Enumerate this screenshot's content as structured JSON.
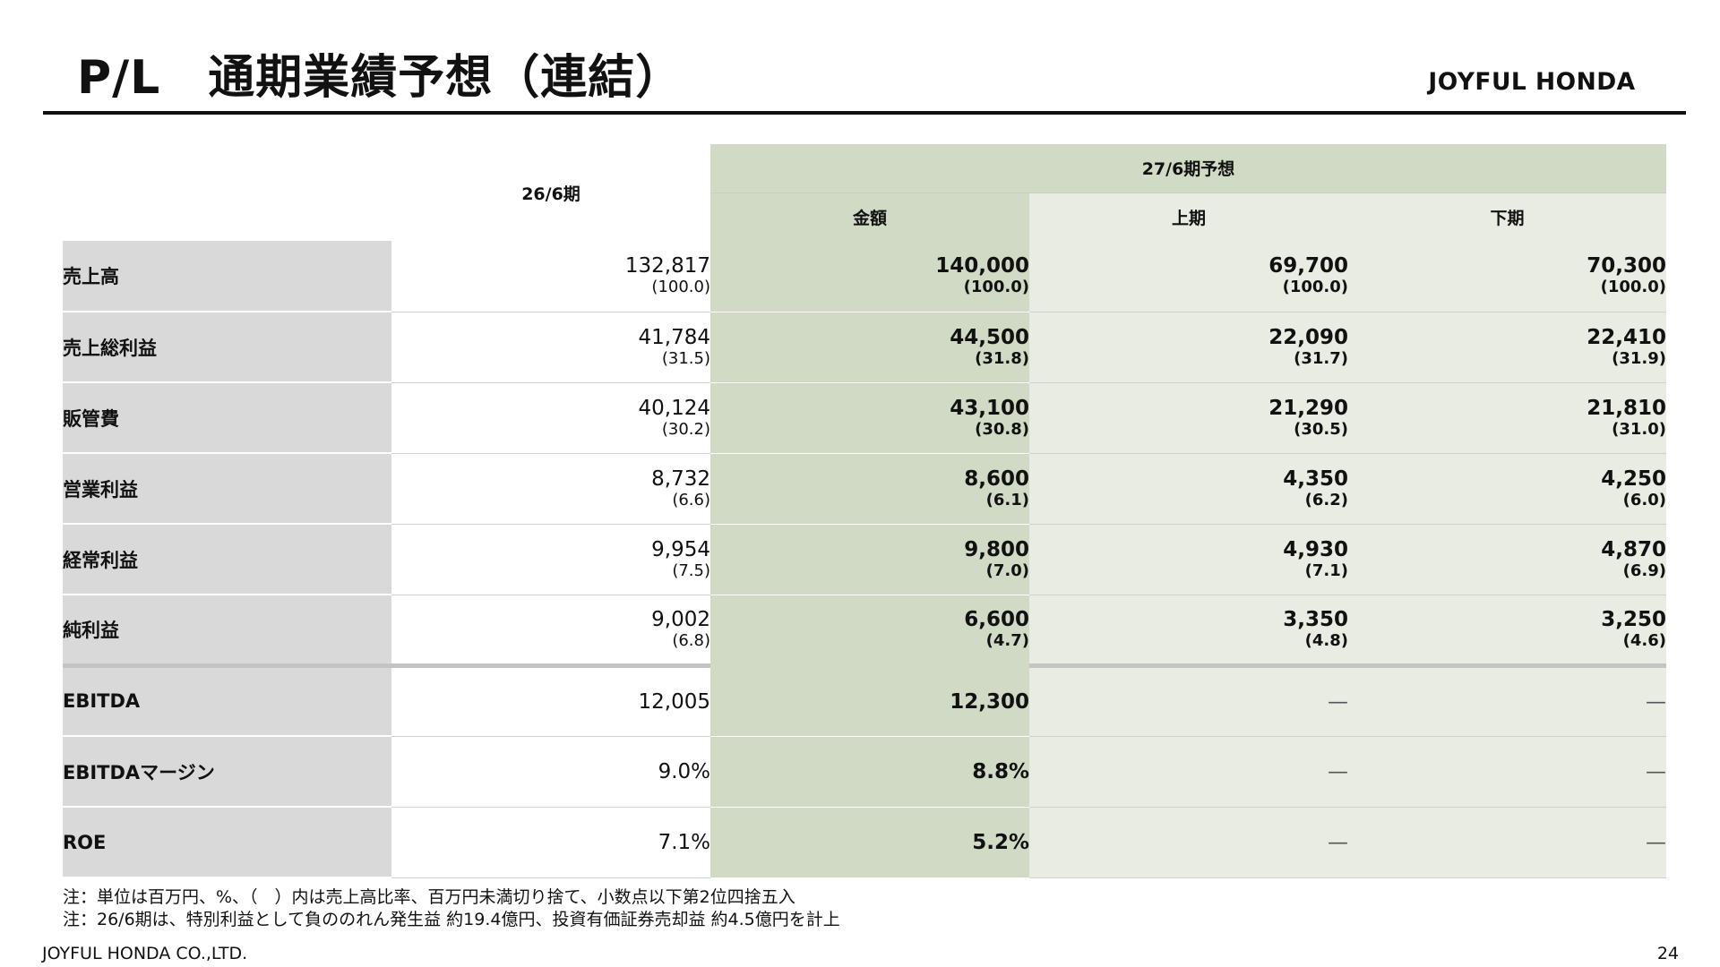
{
  "header": {
    "title": "P/L　通期業績予想（連結）",
    "brand": "JOYFUL HONDA"
  },
  "table": {
    "col_prev": "26/6期",
    "col_forecast": "27/6期予想",
    "col_amount": "金額",
    "col_h1": "上期",
    "col_h2": "下期",
    "rows": [
      {
        "label": "売上高",
        "prev": "132,817",
        "prev_ratio": "(100.0)",
        "fc": "140,000",
        "fc_ratio": "(100.0)",
        "h1": "69,700",
        "h1_ratio": "(100.0)",
        "h2": "70,300",
        "h2_ratio": "(100.0)"
      },
      {
        "label": "売上総利益",
        "prev": "41,784",
        "prev_ratio": "(31.5)",
        "fc": "44,500",
        "fc_ratio": "(31.8)",
        "h1": "22,090",
        "h1_ratio": "(31.7)",
        "h2": "22,410",
        "h2_ratio": "(31.9)"
      },
      {
        "label": "販管費",
        "prev": "40,124",
        "prev_ratio": "(30.2)",
        "fc": "43,100",
        "fc_ratio": "(30.8)",
        "h1": "21,290",
        "h1_ratio": "(30.5)",
        "h2": "21,810",
        "h2_ratio": "(31.0)"
      },
      {
        "label": "営業利益",
        "prev": "8,732",
        "prev_ratio": "(6.6)",
        "fc": "8,600",
        "fc_ratio": "(6.1)",
        "h1": "4,350",
        "h1_ratio": "(6.2)",
        "h2": "4,250",
        "h2_ratio": "(6.0)"
      },
      {
        "label": "経常利益",
        "prev": "9,954",
        "prev_ratio": "(7.5)",
        "fc": "9,800",
        "fc_ratio": "(7.0)",
        "h1": "4,930",
        "h1_ratio": "(7.1)",
        "h2": "4,870",
        "h2_ratio": "(6.9)"
      },
      {
        "label": "純利益",
        "prev": "9,002",
        "prev_ratio": "(6.8)",
        "fc": "6,600",
        "fc_ratio": "(4.7)",
        "h1": "3,350",
        "h1_ratio": "(4.8)",
        "h2": "3,250",
        "h2_ratio": "(4.6)"
      }
    ],
    "extra_rows": [
      {
        "label": "EBITDA",
        "prev": "12,005",
        "fc": "12,300",
        "h1": "—",
        "h2": "—"
      },
      {
        "label": "EBITDAマージン",
        "prev": "9.0%",
        "fc": "8.8%",
        "h1": "—",
        "h2": "—"
      },
      {
        "label": "ROE",
        "prev": "7.1%",
        "fc": "5.2%",
        "h1": "—",
        "h2": "—"
      }
    ]
  },
  "notes": [
    "注：単位は百万円、%、（　）内は売上高比率、百万円未満切り捨て、小数点以下第2位四捨五入",
    "注：26/6期は、特別利益として負ののれん発生益 約19.4億円、投資有価証券売却益 約4.5億円を計上"
  ],
  "footer": {
    "company": "JOYFUL HONDA CO.,LTD.",
    "page": "24"
  }
}
